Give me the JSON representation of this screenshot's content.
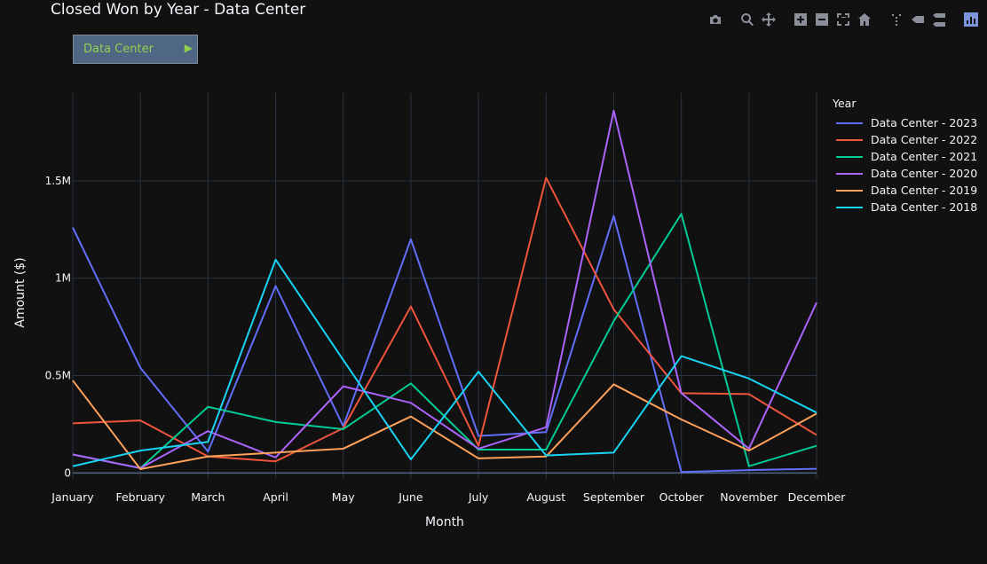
{
  "title": "Closed Won by Year - Data Center",
  "dropdown": {
    "selected": "Data Center",
    "arrow": "▶"
  },
  "modebar": [
    "camera-icon",
    "zoom-icon",
    "pan-icon",
    "zoom-in-icon",
    "zoom-out-icon",
    "autoscale-icon",
    "reset-axes-icon",
    "spike-lines-icon",
    "hover-closest-icon",
    "hover-compare-icon",
    "plotly-logo-icon"
  ],
  "legend": {
    "title": "Year"
  },
  "chart_data": {
    "type": "line",
    "xlabel": "Month",
    "ylabel": "Amount ($)",
    "categories": [
      "January",
      "February",
      "March",
      "April",
      "May",
      "June",
      "July",
      "August",
      "September",
      "October",
      "November",
      "December"
    ],
    "ylim": [
      -30000,
      1950000
    ],
    "yticks": [
      0,
      500000,
      1000000,
      1500000
    ],
    "ytick_labels": [
      "0",
      "0.5M",
      "1M",
      "1.5M"
    ],
    "grid": true,
    "legend_position": "right",
    "series": [
      {
        "name": "Data Center - 2023",
        "color": "#636efa",
        "values": [
          1260000,
          540000,
          110000,
          960000,
          240000,
          1200000,
          190000,
          210000,
          1320000,
          5000,
          15000,
          22000
        ]
      },
      {
        "name": "Data Center - 2022",
        "color": "#ef553b",
        "values": [
          255000,
          270000,
          85000,
          60000,
          230000,
          855000,
          140000,
          1515000,
          840000,
          410000,
          405000,
          195000
        ]
      },
      {
        "name": "Data Center - 2021",
        "color": "#00cc96",
        "values": [
          95000,
          25000,
          340000,
          262000,
          225000,
          460000,
          120000,
          120000,
          780000,
          1330000,
          35000,
          140000
        ]
      },
      {
        "name": "Data Center - 2020",
        "color": "#ab63fa",
        "values": [
          95000,
          25000,
          215000,
          80000,
          445000,
          360000,
          125000,
          235000,
          1860000,
          410000,
          125000,
          875000
        ]
      },
      {
        "name": "Data Center - 2019",
        "color": "#ffa15a",
        "values": [
          475000,
          20000,
          85000,
          105000,
          125000,
          290000,
          75000,
          85000,
          455000,
          275000,
          115000,
          305000
        ]
      },
      {
        "name": "Data Center - 2018",
        "color": "#19d3f3",
        "values": [
          35000,
          115000,
          160000,
          1095000,
          580000,
          70000,
          520000,
          90000,
          105000,
          600000,
          485000,
          310000
        ]
      }
    ]
  }
}
